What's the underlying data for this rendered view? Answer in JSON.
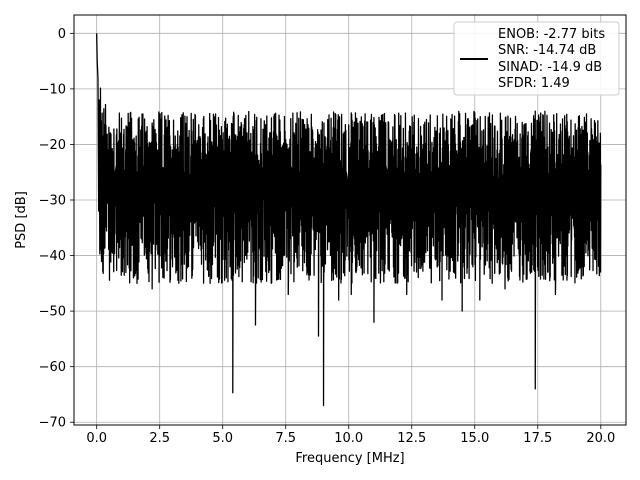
{
  "chart_data": {
    "type": "line",
    "title": "",
    "xlabel": "Frequency [MHz]",
    "ylabel": "PSD [dB]",
    "xlim": [
      -0.9,
      21.0
    ],
    "ylim": [
      -70.5,
      3.3
    ],
    "xticks": [
      0.0,
      2.5,
      5.0,
      7.5,
      10.0,
      12.5,
      15.0,
      17.5,
      20.0
    ],
    "xtick_labels": [
      "0.0",
      "2.5",
      "5.0",
      "7.5",
      "10.0",
      "12.5",
      "15.0",
      "17.5",
      "20.0"
    ],
    "yticks": [
      0,
      -10,
      -20,
      -30,
      -40,
      -50,
      -60,
      -70
    ],
    "ytick_labels": [
      "0",
      "−10",
      "−20",
      "−30",
      "−40",
      "−50",
      "−60",
      "−70"
    ],
    "grid": true,
    "legend_position": "top-right",
    "legend_lines": [
      "ENOB: -2.77 bits",
      "SNR: -14.74 dB",
      "SINAD: -14.9 dB",
      "SFDR: 1.49"
    ],
    "line_color": "#000000",
    "series": [
      {
        "x_start": 0.0,
        "x_end": 20.0,
        "noise_top_range": [
          -28,
          -14
        ],
        "noise_bottom_range": [
          -45,
          -28
        ],
        "peaks": [
          {
            "x": 0.0,
            "y": 0.0
          },
          {
            "x": 0.02,
            "y": -5.0
          },
          {
            "x": 0.05,
            "y": -8.0
          },
          {
            "x": 0.1,
            "y": -12.0
          }
        ],
        "dips": [
          {
            "x": 0.08,
            "y": -32
          },
          {
            "x": 1.6,
            "y": -45
          },
          {
            "x": 2.2,
            "y": -46
          },
          {
            "x": 4.5,
            "y": -45
          },
          {
            "x": 5.4,
            "y": -64.7
          },
          {
            "x": 6.3,
            "y": -52.5
          },
          {
            "x": 7.6,
            "y": -47
          },
          {
            "x": 8.8,
            "y": -54.5
          },
          {
            "x": 9.0,
            "y": -67.0
          },
          {
            "x": 9.6,
            "y": -48
          },
          {
            "x": 10.1,
            "y": -47
          },
          {
            "x": 11.0,
            "y": -52
          },
          {
            "x": 12.3,
            "y": -47
          },
          {
            "x": 13.7,
            "y": -48
          },
          {
            "x": 14.5,
            "y": -50
          },
          {
            "x": 15.2,
            "y": -48
          },
          {
            "x": 16.2,
            "y": -46
          },
          {
            "x": 17.4,
            "y": -64
          },
          {
            "x": 18.2,
            "y": -47
          }
        ]
      }
    ]
  }
}
